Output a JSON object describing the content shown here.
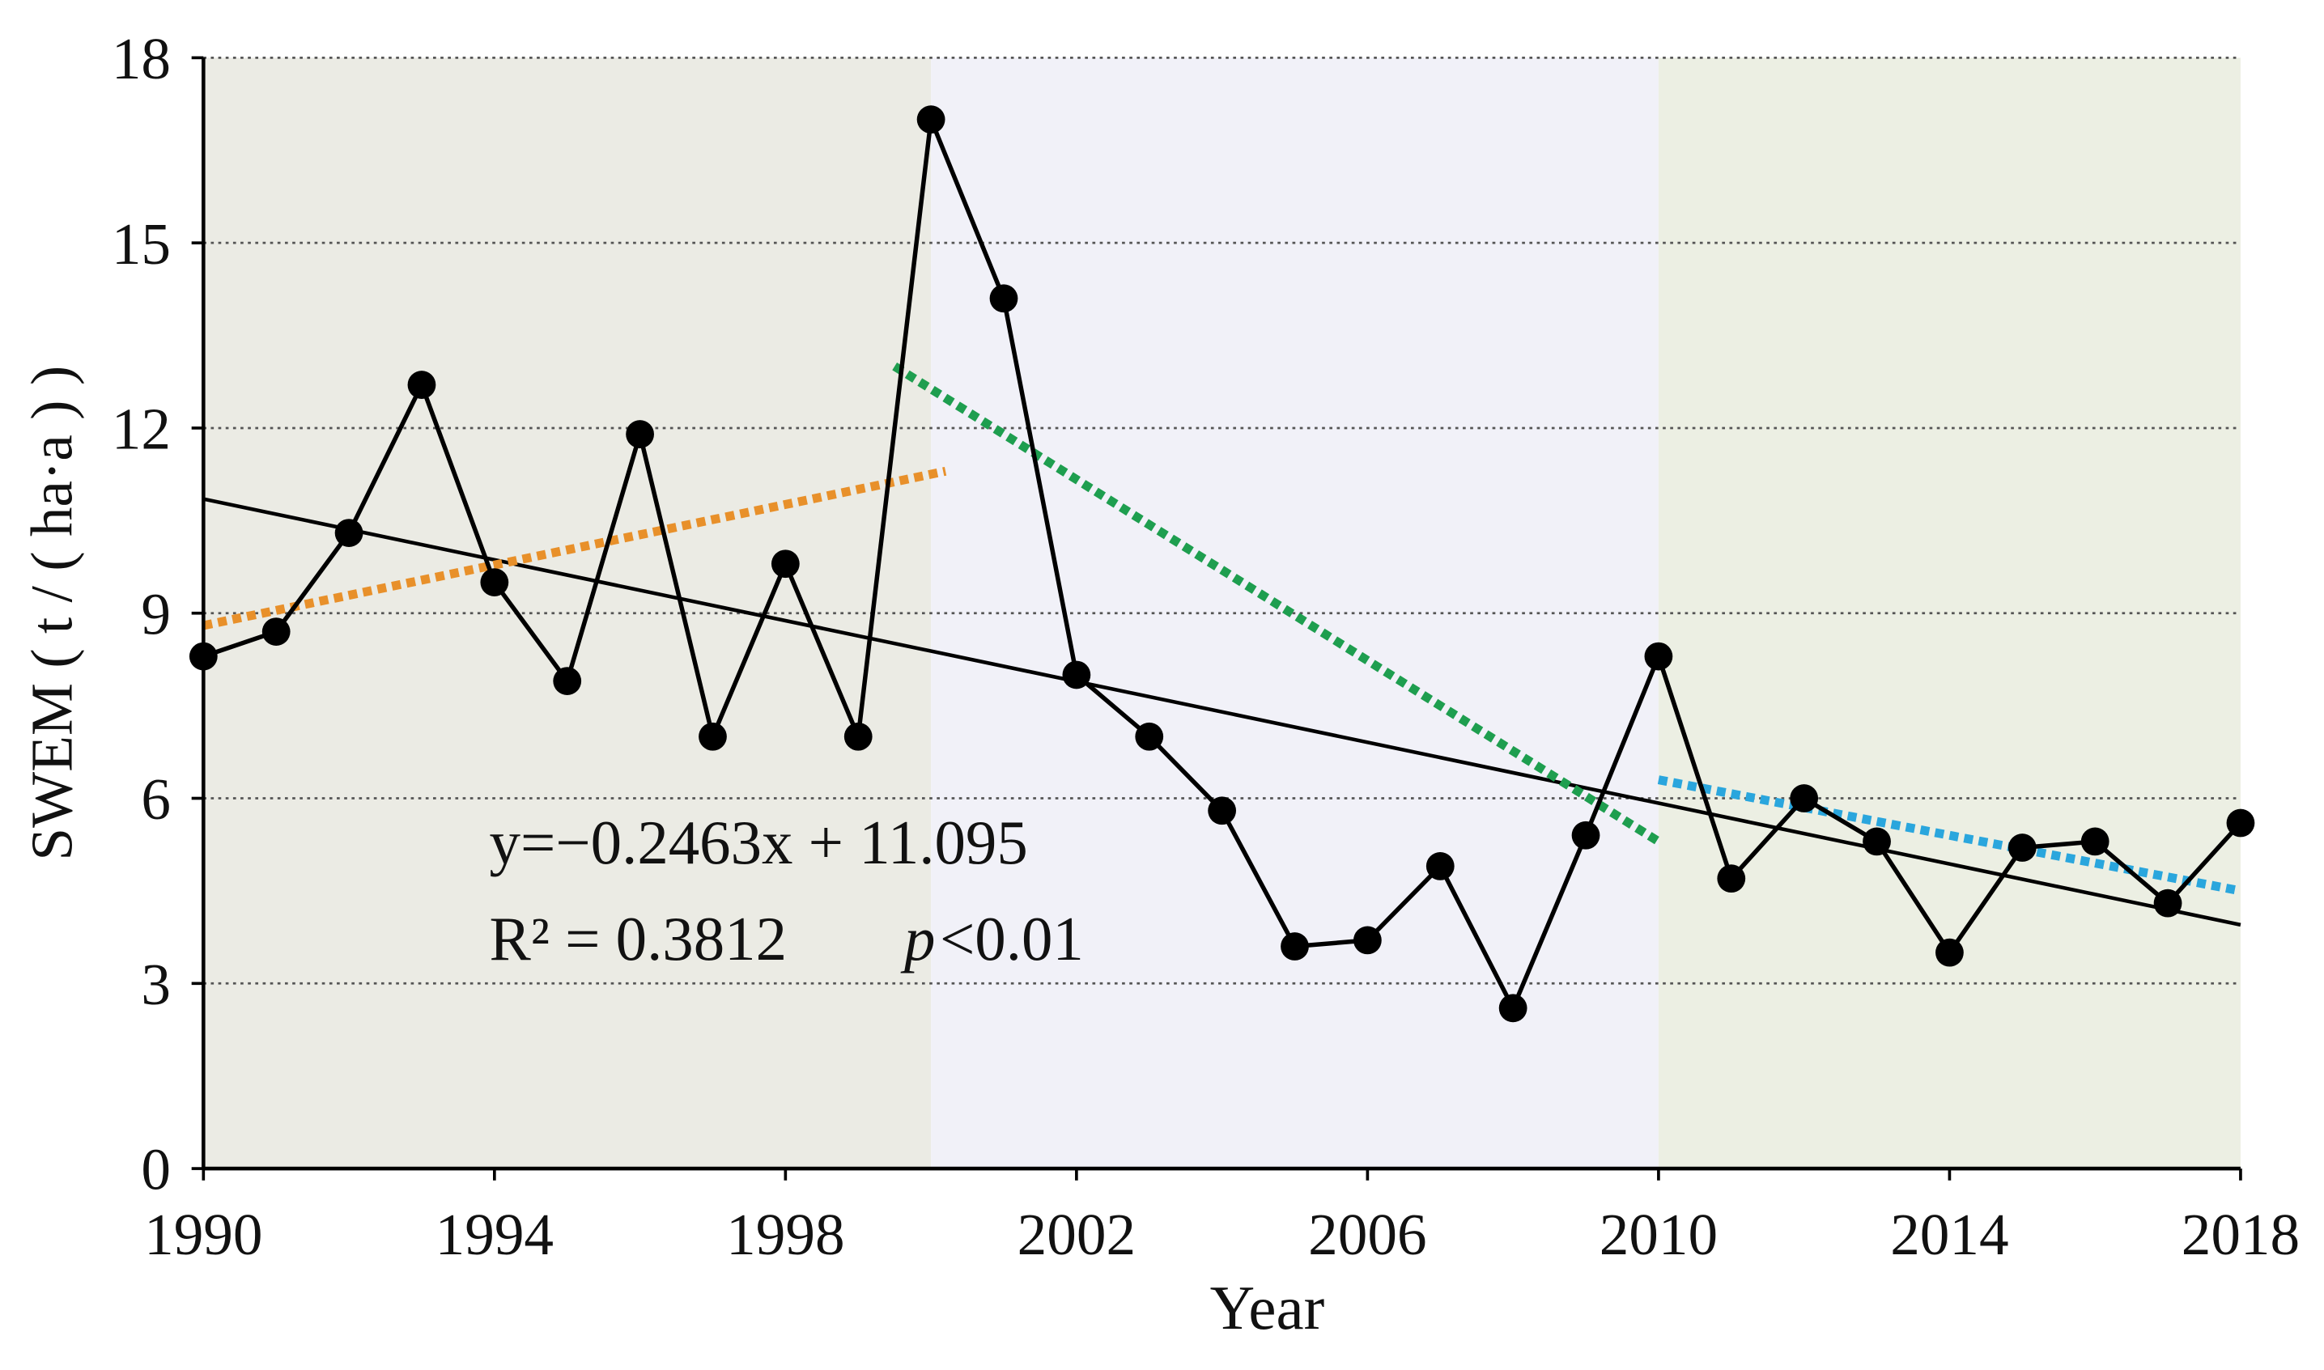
{
  "chart_data": {
    "type": "line",
    "x_label": "Year",
    "y_label": "SWEM ( t / ( ha·a ) )",
    "x": [
      1990,
      1991,
      1992,
      1993,
      1994,
      1995,
      1996,
      1997,
      1998,
      1999,
      2000,
      2001,
      2002,
      2003,
      2004,
      2005,
      2006,
      2007,
      2008,
      2009,
      2010,
      2011,
      2012,
      2013,
      2014,
      2015,
      2016,
      2017,
      2018
    ],
    "series": [
      {
        "color": "#000000",
        "values": [
          8.3,
          8.7,
          10.3,
          12.7,
          9.5,
          7.9,
          11.9,
          7.0,
          9.8,
          7.0,
          17.0,
          14.1,
          8.0,
          7.0,
          5.8,
          3.6,
          3.7,
          4.9,
          2.6,
          5.4,
          8.3,
          4.7,
          6.0,
          5.3,
          3.5,
          5.2,
          5.3,
          4.3,
          5.6
        ]
      }
    ],
    "trendlines": [
      {
        "color": "#000000",
        "style": "solid",
        "x": [
          1990,
          2018
        ],
        "values": [
          10.85,
          3.95
        ]
      },
      {
        "color": "#e8902a",
        "style": "dotted",
        "x": [
          1990,
          2000.2
        ],
        "values": [
          8.8,
          11.3
        ]
      },
      {
        "color": "#1e9e4f",
        "style": "dotted",
        "x": [
          1999.5,
          2010
        ],
        "values": [
          13.0,
          5.3
        ]
      },
      {
        "color": "#2aa6dd",
        "style": "dotted",
        "x": [
          2010,
          2018
        ],
        "values": [
          6.3,
          4.5
        ]
      }
    ],
    "periods": [
      {
        "xrange": [
          1990,
          2000
        ],
        "color": "#ebebe4"
      },
      {
        "xrange": [
          2000,
          2010
        ],
        "color": "#f1f1f8"
      },
      {
        "xrange": [
          2010,
          2018
        ],
        "color": "#ecefe3"
      }
    ],
    "annotations": [
      "y=−0.2463x + 11.095",
      "R² = 0.3812",
      "p",
      "<0.01"
    ],
    "xlim": [
      1990,
      2018
    ],
    "xticks": [
      1990,
      1994,
      1998,
      2002,
      2006,
      2010,
      2014,
      2018
    ],
    "ylim": [
      0,
      18
    ],
    "yticks": [
      0,
      3,
      6,
      9,
      12,
      15,
      18
    ],
    "grid": true
  }
}
